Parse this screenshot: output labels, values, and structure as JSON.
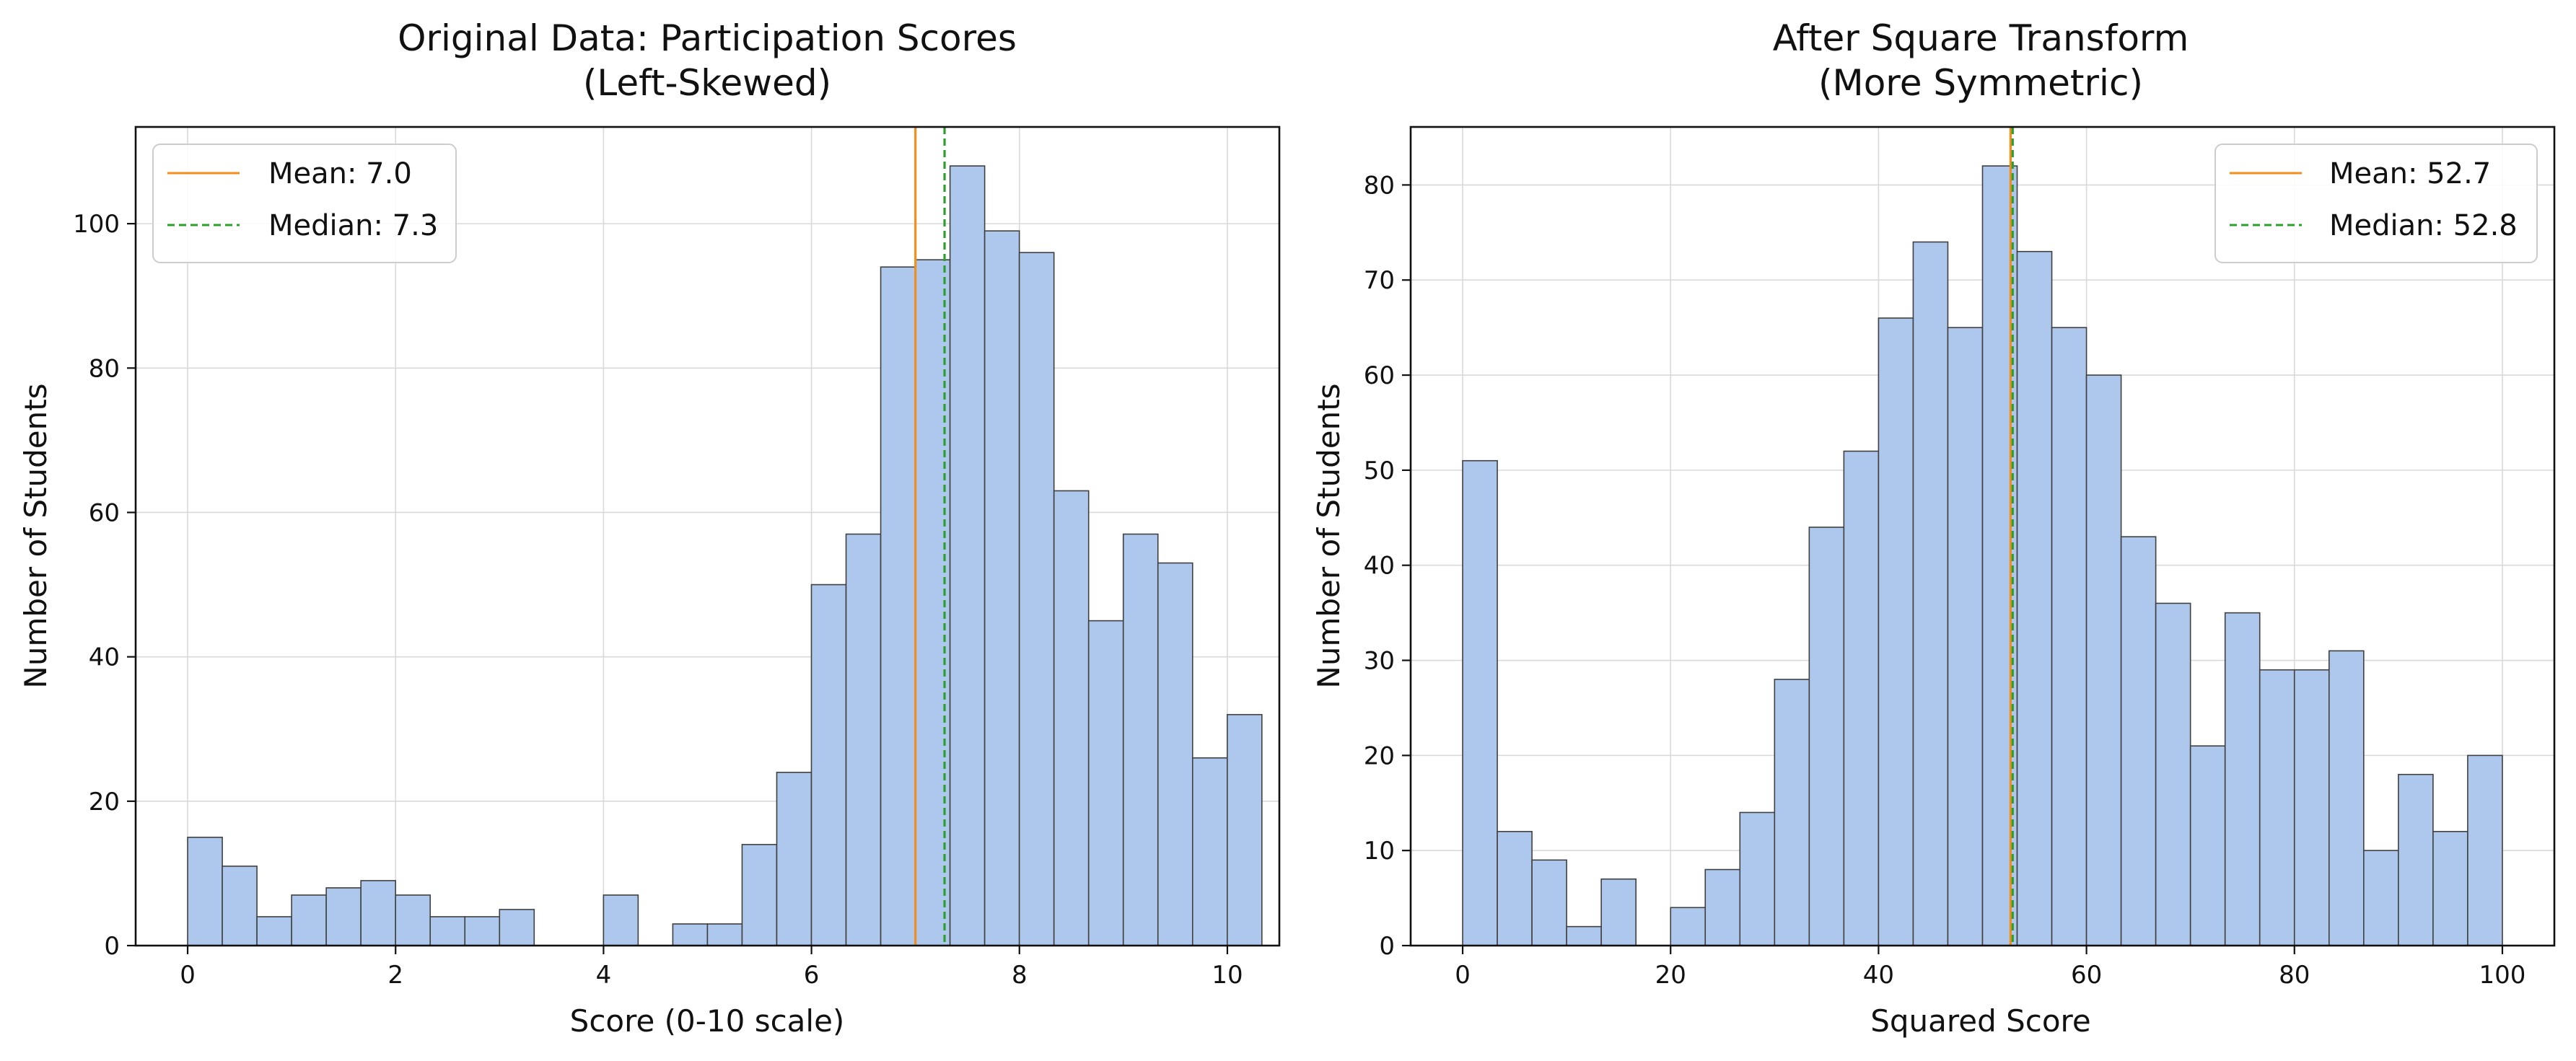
{
  "chart_data": [
    {
      "type": "bar",
      "title": "Original Data: Participation Scores",
      "subtitle": "(Left-Skewed)",
      "xlabel": "Score (0-10 scale)",
      "ylabel": "Number of Students",
      "xlim": [
        -0.5,
        10.5
      ],
      "ylim": [
        0,
        113.4
      ],
      "xticks": [
        0,
        2,
        4,
        6,
        8,
        10
      ],
      "yticks": [
        0,
        20,
        40,
        60,
        80,
        100
      ],
      "bin_width": 0.3333,
      "bin_edges_start": 0,
      "values": [
        15,
        11,
        4,
        7,
        8,
        9,
        7,
        4,
        4,
        5,
        0,
        0,
        7,
        0,
        3,
        3,
        14,
        24,
        50,
        57,
        94,
        95,
        108,
        99,
        96,
        63,
        45,
        57,
        53,
        26,
        32
      ],
      "grid": true,
      "legend_position": "top-left",
      "lines": [
        {
          "label": "Mean: 7.0",
          "x": 7.0,
          "color": "#f28e1c",
          "style": "solid"
        },
        {
          "label": "Median: 7.3",
          "x": 7.28,
          "color": "#2ca02c",
          "style": "dashed"
        }
      ],
      "bar_color": "#aec7ec"
    },
    {
      "type": "bar",
      "title": "After Square Transform",
      "subtitle": "(More Symmetric)",
      "xlabel": "Squared Score",
      "ylabel": "Number of Students",
      "xlim": [
        -5,
        105
      ],
      "ylim": [
        0,
        86.1
      ],
      "xticks": [
        0,
        20,
        40,
        60,
        80,
        100
      ],
      "yticks": [
        0,
        10,
        20,
        30,
        40,
        50,
        60,
        70,
        80
      ],
      "bin_width": 3.3333,
      "bin_edges_start": 0,
      "values": [
        51,
        12,
        9,
        2,
        7,
        0,
        4,
        8,
        14,
        28,
        44,
        52,
        66,
        74,
        65,
        82,
        73,
        65,
        60,
        43,
        36,
        21,
        35,
        29,
        29,
        31,
        10,
        18,
        12,
        20
      ],
      "grid": true,
      "legend_position": "top-right",
      "lines": [
        {
          "label": "Mean: 52.7",
          "x": 52.7,
          "color": "#f28e1c",
          "style": "solid"
        },
        {
          "label": "Median: 52.8",
          "x": 52.9,
          "color": "#2ca02c",
          "style": "dashed"
        }
      ],
      "bar_color": "#aec7ec"
    }
  ]
}
